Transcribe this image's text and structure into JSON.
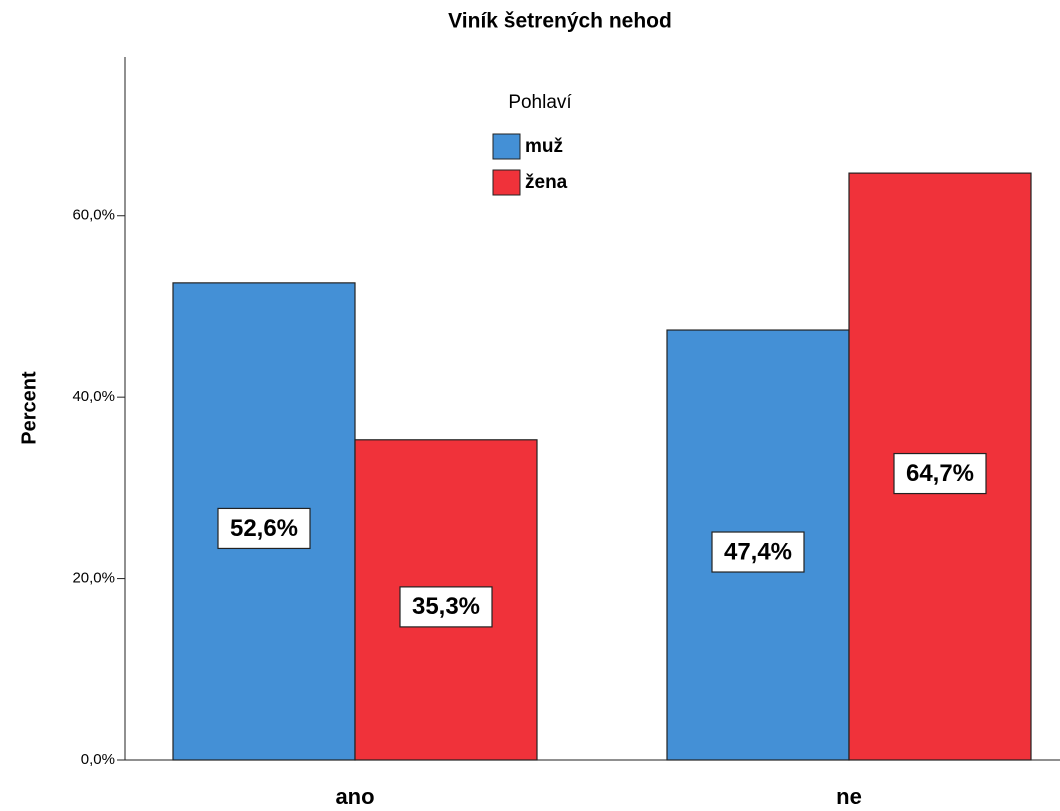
{
  "chart_data": {
    "type": "bar",
    "title": "Viník šetrených nehod",
    "y_label": "Percent",
    "categories": [
      "ano",
      "ne"
    ],
    "legend_title": "Pohlaví",
    "series": [
      {
        "name": "muž",
        "color": "#4490d6",
        "values": [
          52.6,
          47.4
        ],
        "value_labels": [
          "52,6%",
          "47,4%"
        ]
      },
      {
        "name": "žena",
        "color": "#f0323a",
        "values": [
          35.3,
          64.7
        ],
        "value_labels": [
          "35,3%",
          "64,7%"
        ]
      }
    ],
    "ylim": [
      0,
      77.5
    ],
    "yticks": [
      {
        "value": 0,
        "label": "0,0%"
      },
      {
        "value": 20,
        "label": "20,0%"
      },
      {
        "value": 40,
        "label": "40,0%"
      },
      {
        "value": 60,
        "label": "60,0%"
      }
    ]
  }
}
